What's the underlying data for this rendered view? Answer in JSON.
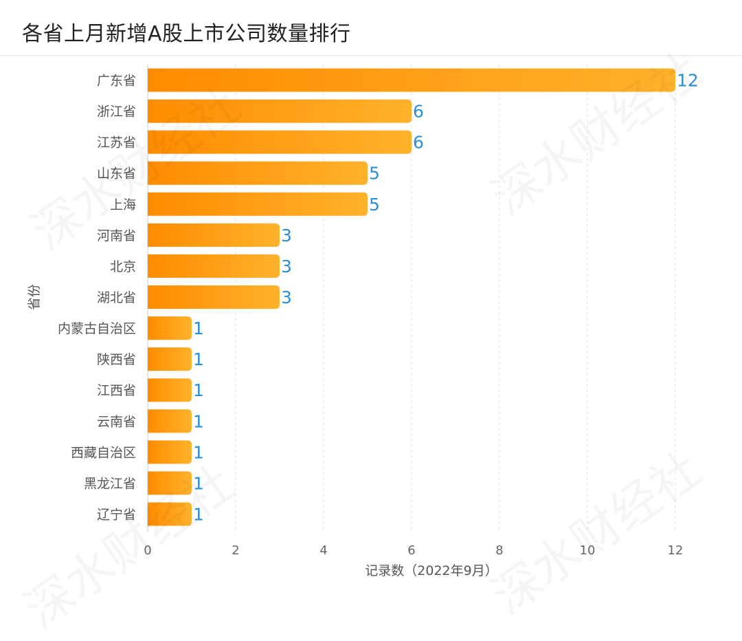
{
  "chart_data": {
    "type": "bar",
    "orientation": "horizontal",
    "title": "各省上月新增A股上市公司数量排行",
    "xlabel": "记录数（2022年9月）",
    "ylabel": "省份",
    "xlim": [
      0,
      12
    ],
    "xticks": [
      0,
      2,
      4,
      6,
      8,
      10,
      12
    ],
    "grid": "vertical-dashed",
    "categories": [
      "广东省",
      "浙江省",
      "江苏省",
      "山东省",
      "上海",
      "河南省",
      "北京",
      "湖北省",
      "内蒙古自治区",
      "陕西省",
      "江西省",
      "云南省",
      "西藏自治区",
      "黑龙江省",
      "辽宁省"
    ],
    "values": [
      12,
      6,
      6,
      5,
      5,
      3,
      3,
      3,
      1,
      1,
      1,
      1,
      1,
      1,
      1
    ],
    "colors": {
      "bar_start": "#ff8c00",
      "bar_end": "#ffb22c",
      "label": "#2b8fd6",
      "text": "#555555"
    }
  },
  "watermark": "深水财经社"
}
